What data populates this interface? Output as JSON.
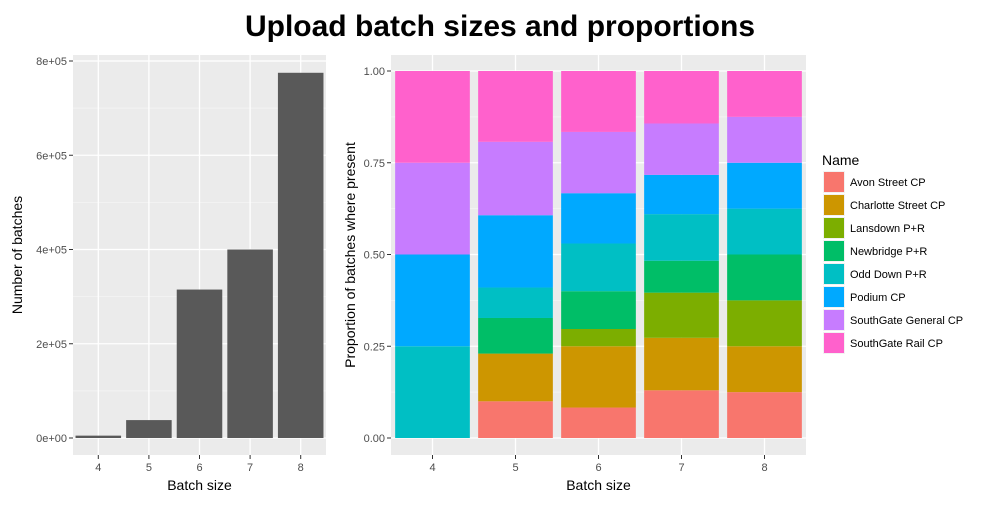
{
  "title": "Upload batch sizes and proportions",
  "chart_data": [
    {
      "type": "bar",
      "categories": [
        "4",
        "5",
        "6",
        "7",
        "8"
      ],
      "values": [
        5000,
        38000,
        315000,
        400000,
        775000
      ],
      "xlabel": "Batch size",
      "ylabel": "Number of batches",
      "ylim": [
        0,
        800000
      ],
      "yticks": [
        "0e+00",
        "2e+05",
        "4e+05",
        "6e+05",
        "8e+05"
      ],
      "ytick_values": [
        0,
        200000,
        400000,
        600000,
        800000
      ],
      "bar_color": "#595959",
      "grid": true
    },
    {
      "type": "bar",
      "stacked": true,
      "categories": [
        "4",
        "5",
        "6",
        "7",
        "8"
      ],
      "xlabel": "Batch size",
      "ylabel": "Proportion of batches where present",
      "ylim": [
        0,
        1
      ],
      "yticks": [
        "0.00",
        "0.25",
        "0.50",
        "0.75",
        "1.00"
      ],
      "ytick_values": [
        0,
        0.25,
        0.5,
        0.75,
        1.0
      ],
      "legend_title": "Name",
      "legend_position": "right",
      "grid": true,
      "series": [
        {
          "name": "Avon Street CP",
          "color": "#F8766D",
          "values": [
            0,
            0.1,
            0.083,
            0.13,
            0.125
          ]
        },
        {
          "name": "Charlotte Street CP",
          "color": "#CD9600",
          "values": [
            0,
            0.13,
            0.167,
            0.143,
            0.125
          ]
        },
        {
          "name": "Lansdown P+R",
          "color": "#7CAE00",
          "values": [
            0,
            0,
            0.047,
            0.123,
            0.125
          ]
        },
        {
          "name": "Newbridge P+R",
          "color": "#00BE67",
          "values": [
            0,
            0.097,
            0.103,
            0.087,
            0.125
          ]
        },
        {
          "name": "Odd Down P+R",
          "color": "#00BFC4",
          "values": [
            0.25,
            0.083,
            0.13,
            0.127,
            0.125
          ]
        },
        {
          "name": "Podium CP",
          "color": "#00A9FF",
          "values": [
            0.25,
            0.197,
            0.137,
            0.107,
            0.125
          ]
        },
        {
          "name": "SouthGate General CP",
          "color": "#C77CFF",
          "values": [
            0.25,
            0.2,
            0.167,
            0.14,
            0.125
          ]
        },
        {
          "name": "SouthGate Rail CP",
          "color": "#FF61CC",
          "values": [
            0.25,
            0.193,
            0.166,
            0.143,
            0.125
          ]
        }
      ]
    }
  ]
}
